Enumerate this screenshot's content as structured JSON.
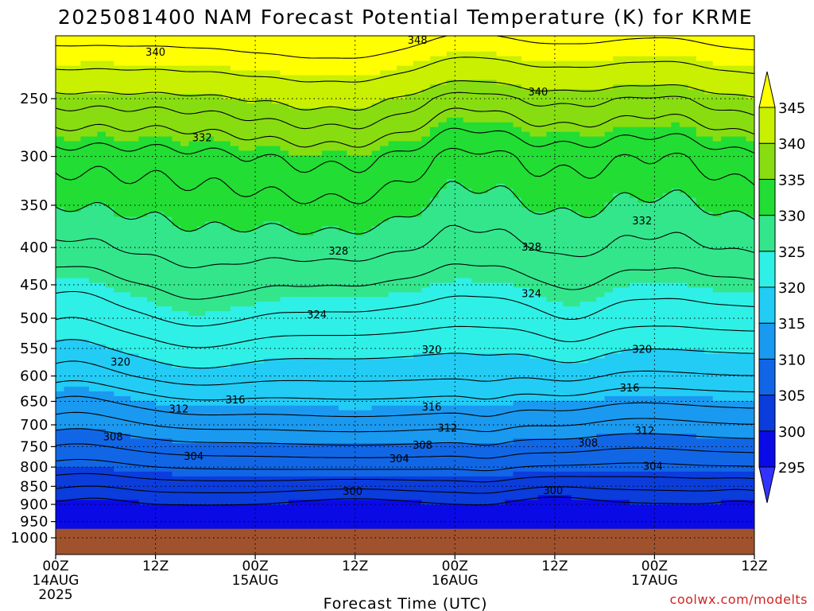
{
  "chart_data": {
    "type": "heatmap",
    "title": "2025081400 NAM Forecast Potential Temperature (K) for KRME",
    "xlabel": "Forecast Time (UTC)",
    "ylabel": "",
    "credit": "coolwx.com/modelts",
    "x_ticks": [
      {
        "hours": 0,
        "line1": "00Z",
        "line2": "14AUG",
        "line3": "2025"
      },
      {
        "hours": 12,
        "line1": "12Z",
        "line2": "",
        "line3": ""
      },
      {
        "hours": 24,
        "line1": "00Z",
        "line2": "15AUG",
        "line3": ""
      },
      {
        "hours": 36,
        "line1": "12Z",
        "line2": "",
        "line3": ""
      },
      {
        "hours": 48,
        "line1": "00Z",
        "line2": "16AUG",
        "line3": ""
      },
      {
        "hours": 60,
        "line1": "12Z",
        "line2": "",
        "line3": ""
      },
      {
        "hours": 72,
        "line1": "00Z",
        "line2": "17AUG",
        "line3": ""
      },
      {
        "hours": 84,
        "line1": "12Z",
        "line2": "",
        "line3": ""
      }
    ],
    "xlim": [
      0,
      84
    ],
    "y_ticks": [
      250,
      300,
      350,
      400,
      450,
      500,
      550,
      600,
      650,
      700,
      750,
      800,
      850,
      900,
      950,
      1000
    ],
    "ylim": [
      1030,
      200
    ],
    "y_scale": "log",
    "grid": "dotted",
    "colorbar": {
      "levels": [
        295,
        300,
        305,
        310,
        315,
        320,
        325,
        330,
        335,
        340,
        345
      ],
      "colors": [
        "#3333ff",
        "#0a0ae6",
        "#0b3cdc",
        "#1166e6",
        "#1a99f0",
        "#22ccf5",
        "#2ff0e6",
        "#33e68c",
        "#22dd33",
        "#88dd11",
        "#c8f000",
        "#ffff00"
      ]
    },
    "contour_labels": [
      {
        "value": "348",
        "x_hours": 43.5,
        "p": 208
      },
      {
        "value": "340",
        "x_hours": 12.0,
        "p": 216
      },
      {
        "value": "340",
        "x_hours": 58.0,
        "p": 245
      },
      {
        "value": "332",
        "x_hours": 17.6,
        "p": 283
      },
      {
        "value": "332",
        "x_hours": 70.5,
        "p": 368
      },
      {
        "value": "328",
        "x_hours": 34.0,
        "p": 405
      },
      {
        "value": "328",
        "x_hours": 57.2,
        "p": 400
      },
      {
        "value": "324",
        "x_hours": 31.4,
        "p": 495
      },
      {
        "value": "324",
        "x_hours": 57.2,
        "p": 463
      },
      {
        "value": "320",
        "x_hours": 7.8,
        "p": 575
      },
      {
        "value": "320",
        "x_hours": 45.2,
        "p": 553
      },
      {
        "value": "320",
        "x_hours": 70.5,
        "p": 552
      },
      {
        "value": "316",
        "x_hours": 21.6,
        "p": 648
      },
      {
        "value": "316",
        "x_hours": 45.2,
        "p": 662
      },
      {
        "value": "316",
        "x_hours": 69.0,
        "p": 624
      },
      {
        "value": "312",
        "x_hours": 14.8,
        "p": 667
      },
      {
        "value": "312",
        "x_hours": 47.1,
        "p": 708
      },
      {
        "value": "312",
        "x_hours": 70.8,
        "p": 714
      },
      {
        "value": "308",
        "x_hours": 6.9,
        "p": 728
      },
      {
        "value": "308",
        "x_hours": 44.1,
        "p": 747
      },
      {
        "value": "308",
        "x_hours": 64.0,
        "p": 742
      },
      {
        "value": "304",
        "x_hours": 16.6,
        "p": 774
      },
      {
        "value": "304",
        "x_hours": 41.3,
        "p": 780
      },
      {
        "value": "304",
        "x_hours": 71.8,
        "p": 799
      },
      {
        "value": "300",
        "x_hours": 35.7,
        "p": 864
      },
      {
        "value": "300",
        "x_hours": 59.8,
        "p": 862
      }
    ],
    "contour_levels": [
      348,
      344,
      340,
      338,
      336,
      334,
      332,
      330,
      328,
      326,
      324,
      322,
      320,
      318,
      316,
      314,
      312,
      310,
      308,
      306,
      304,
      302,
      300
    ]
  }
}
